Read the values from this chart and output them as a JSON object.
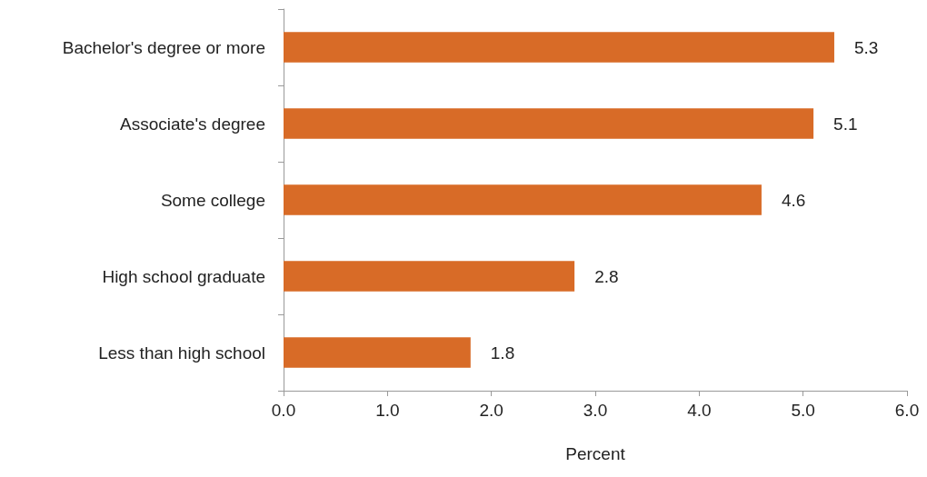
{
  "chart_data": {
    "type": "bar",
    "orientation": "horizontal",
    "xlabel": "Percent",
    "categories": [
      "Bachelor's degree or more",
      "Associate's degree",
      "Some college",
      "High school graduate",
      "Less than high school"
    ],
    "values": [
      5.3,
      5.1,
      4.6,
      2.8,
      1.8
    ],
    "color": "#d86b27",
    "xlim": [
      0,
      6
    ],
    "xticks": [
      {
        "value": 0,
        "label": "0.0"
      },
      {
        "value": 1,
        "label": "1.0"
      },
      {
        "value": 2,
        "label": "2.0"
      },
      {
        "value": 3,
        "label": "3.0"
      },
      {
        "value": 4,
        "label": "4.0"
      },
      {
        "value": 5,
        "label": "5.0"
      },
      {
        "value": 6,
        "label": "6.0"
      }
    ],
    "data_labels": true,
    "grid": false
  }
}
